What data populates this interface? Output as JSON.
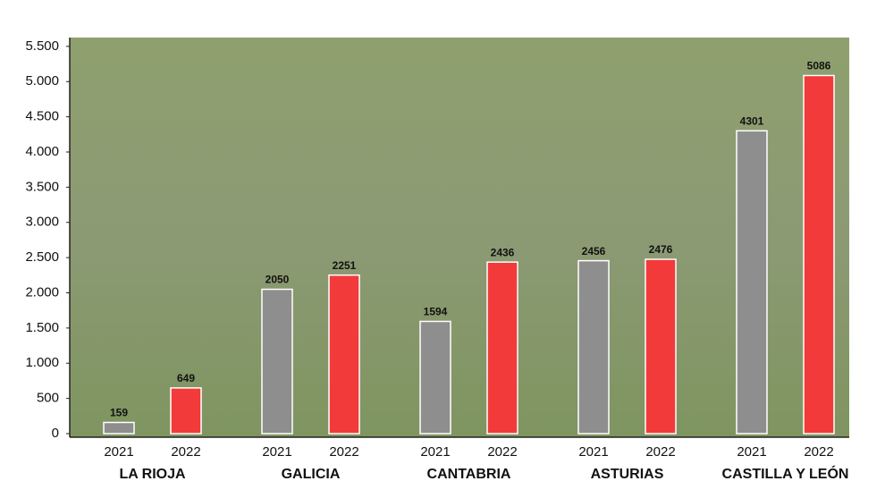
{
  "chart_data": {
    "type": "bar",
    "categories": [
      "LA RIOJA",
      "GALICIA",
      "CANTABRIA",
      "ASTURIAS",
      "CASTILLA Y LEÓN"
    ],
    "series": [
      {
        "name": "2021",
        "color": "#8e8e8e",
        "values": [
          159,
          2050,
          1594,
          2456,
          4301
        ]
      },
      {
        "name": "2022",
        "color": "#f23a3a",
        "values": [
          649,
          2251,
          2436,
          2476,
          5086
        ]
      }
    ],
    "ylim": [
      0,
      5600
    ],
    "yticks": [
      0,
      500,
      {
        "value": 1000,
        "label": "1.000"
      },
      {
        "value": 1500,
        "label": "1.500"
      },
      {
        "value": 2000,
        "label": "2.000"
      },
      {
        "value": 2500,
        "label": "2.500"
      },
      {
        "value": 3000,
        "label": "3.000"
      },
      {
        "value": 3500,
        "label": "3.500"
      },
      {
        "value": 4000,
        "label": "4.000"
      },
      {
        "value": 4500,
        "label": "4.500"
      },
      {
        "value": 5000,
        "label": "5.000"
      },
      {
        "value": 5500,
        "label": "5.500"
      }
    ]
  }
}
